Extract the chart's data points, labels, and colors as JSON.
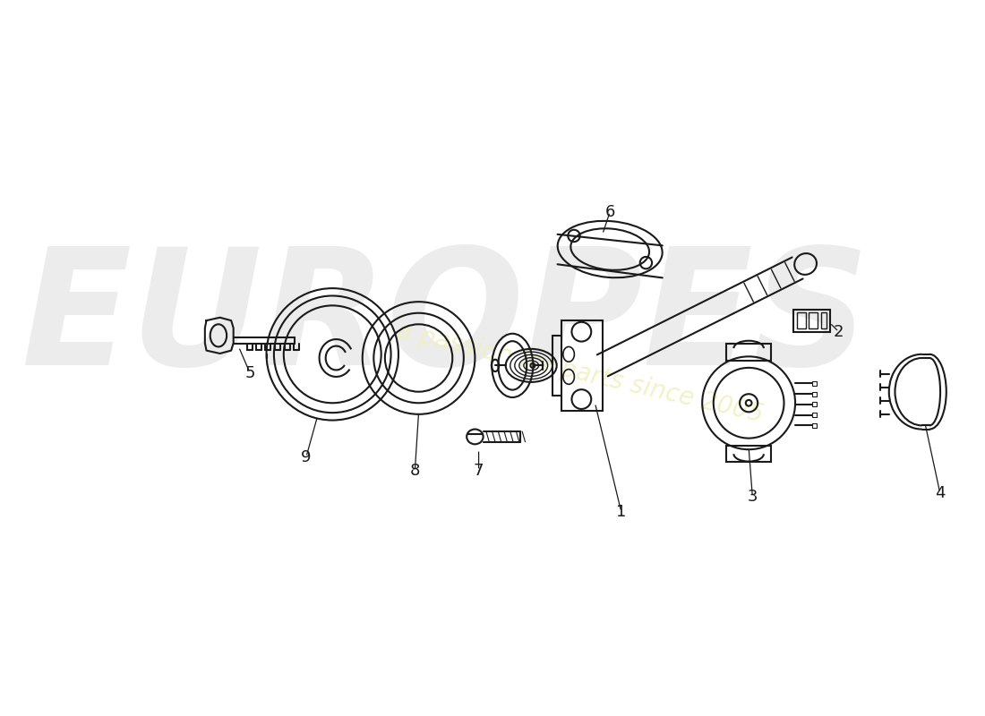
{
  "background_color": "#ffffff",
  "line_color": "#1a1a1a",
  "label_fontsize": 13,
  "watermark_europes_color": "#e0e0e0",
  "watermark_tagline_color": "#f0f0c0"
}
